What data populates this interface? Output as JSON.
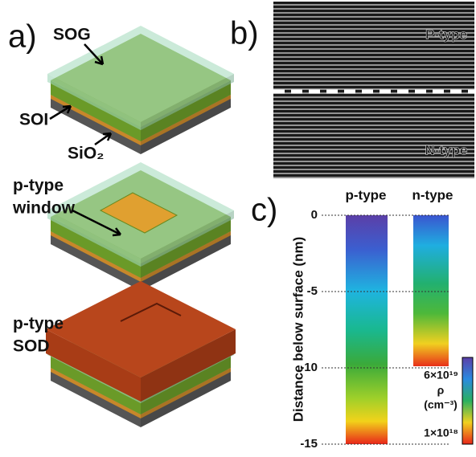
{
  "panel_a": {
    "label": "a)",
    "sog": "SOG",
    "soi": "SOI",
    "sio2": "SiO₂",
    "window_label": [
      "p-type",
      "window"
    ],
    "sod_label": [
      "p-type",
      "SOD"
    ]
  },
  "panel_b": {
    "label": "b)",
    "top_label": "P-type",
    "bottom_label": "N-type"
  },
  "panel_c": {
    "label": "c)",
    "columns": [
      "p-type",
      "n-type"
    ],
    "y_axis_label": "Distance below surface (nm)",
    "ylim": [
      0,
      -15
    ],
    "yticks": [
      0,
      -5,
      -10,
      -15
    ],
    "colorbar": {
      "max_label": "6×10¹⁹",
      "symbol": "ρ",
      "unit": "(cm⁻³)",
      "min_label": "1×10¹⁸"
    }
  }
}
